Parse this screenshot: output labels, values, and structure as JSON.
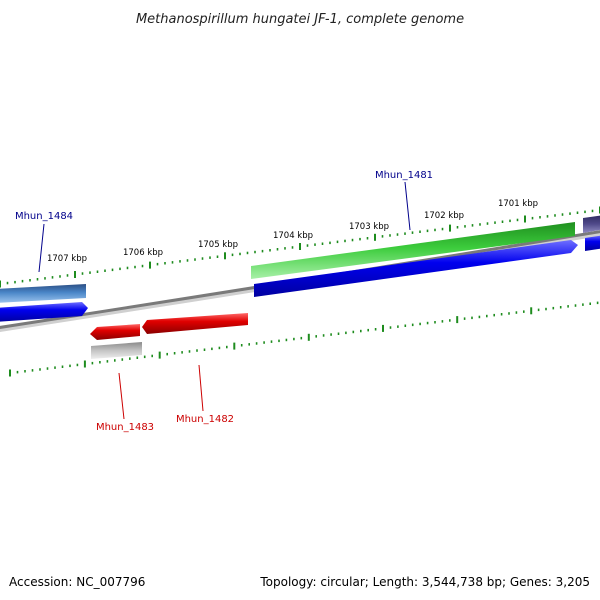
{
  "header": {
    "title": "Methanospirillum hungatei JF-1, complete genome"
  },
  "footer": {
    "accession": "Accession: NC_007796",
    "summary": "Topology: circular; Length: 3,544,738 bp; Genes: 3,205"
  },
  "colors": {
    "forward_label": "#00008b",
    "reverse_label": "#cc0000",
    "tick_green": "#1e8c1e",
    "backbone": "#808080"
  },
  "ruler": {
    "outer_labels": [
      "1707 kbp",
      "1706 kbp",
      "1705 kbp",
      "1704 kbp",
      "1703 kbp",
      "1702 kbp",
      "1701 kbp"
    ]
  },
  "genes": {
    "mhun_1484": {
      "label": "Mhun_1484",
      "strand": "forward",
      "color": "#4a86c8"
    },
    "mhun_1483": {
      "label": "Mhun_1483",
      "strand": "reverse",
      "color": "#e00000"
    },
    "mhun_1482": {
      "label": "Mhun_1482",
      "strand": "reverse",
      "color": "#e00000"
    },
    "mhun_1481": {
      "label": "Mhun_1481",
      "strand": "forward",
      "color": "#3ccc3c"
    }
  },
  "tracks": {
    "forward_cds_color": "#0000ee",
    "reverse_gray_color": "#b8b8b8",
    "partial_feature_color": "#504a8a"
  }
}
